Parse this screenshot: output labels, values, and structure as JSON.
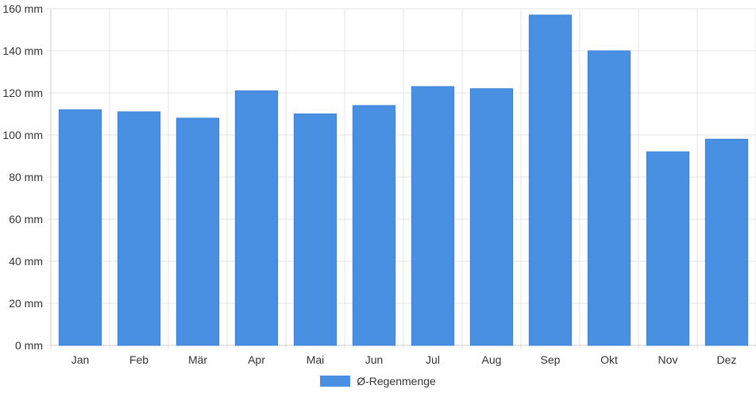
{
  "chart_data": {
    "type": "bar",
    "categories": [
      "Jan",
      "Feb",
      "Mär",
      "Apr",
      "Mai",
      "Jun",
      "Jul",
      "Aug",
      "Sep",
      "Okt",
      "Nov",
      "Dez"
    ],
    "series": [
      {
        "name": "Ø-Regenmenge",
        "values": [
          112,
          111,
          108,
          121,
          110,
          114,
          123,
          122,
          157,
          140,
          92,
          98
        ],
        "color": "#4a90e2"
      }
    ],
    "y_ticks": [
      "0 mm",
      "20 mm",
      "40 mm",
      "60 mm",
      "80 mm",
      "100 mm",
      "120 mm",
      "140 mm",
      "160 mm"
    ],
    "ylim": [
      0,
      160
    ],
    "grid": true,
    "legend_position": "bottom"
  }
}
